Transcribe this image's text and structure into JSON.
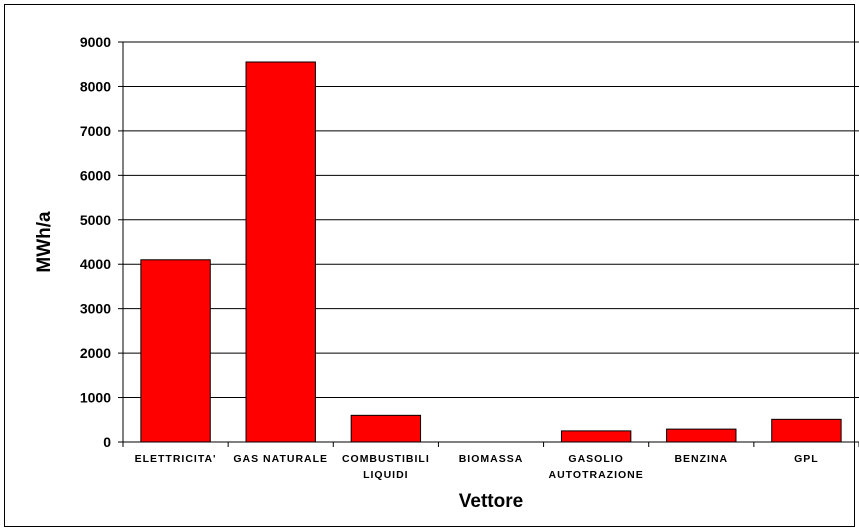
{
  "chart_data": {
    "type": "bar",
    "categories": [
      [
        "ELETTRICITA'"
      ],
      [
        "GAS NATURALE"
      ],
      [
        "COMBUSTIBILI",
        "LIQUIDI"
      ],
      [
        "BIOMASSA"
      ],
      [
        "GASOLIO",
        "AUTOTRAZIONE"
      ],
      [
        "BENZINA"
      ],
      [
        "GPL"
      ]
    ],
    "values": [
      4100,
      8550,
      600,
      0,
      250,
      290,
      510
    ],
    "xlabel": "Vettore",
    "ylabel": "MWh/a",
    "ylim": [
      0,
      9000
    ],
    "yticks": [
      0,
      1000,
      2000,
      3000,
      4000,
      5000,
      6000,
      7000,
      8000,
      9000
    ],
    "grid": true,
    "legend": "none",
    "bar_color": "#ff0000",
    "bar_edge_color": "#000000"
  }
}
